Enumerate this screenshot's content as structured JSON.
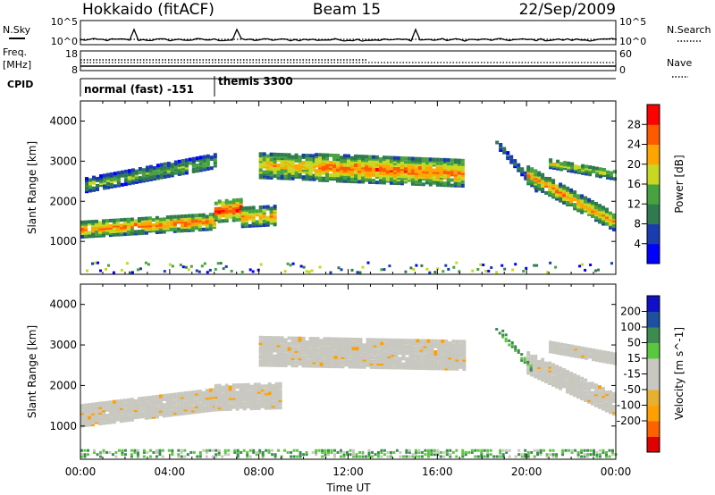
{
  "header": {
    "title_left": "Hokkaido (fitACF)",
    "title_center": "Beam 15",
    "title_right": "22/Sep/2009"
  },
  "status_panel": {
    "nsky_label": "N.Sky",
    "nsky_ticks": [
      "10^5",
      "10^0"
    ],
    "nsearch_label": "N.Search",
    "nsearch_ticks": [
      "10^5",
      "10^0"
    ],
    "freq_label": "Freq.",
    "freq_unit": "[MHz]",
    "freq_ticks": [
      "18",
      "8"
    ],
    "nave_label": "Nave",
    "nave_ticks": [
      "60",
      "0"
    ],
    "cpid_label": "CPID",
    "cpid_segments": [
      {
        "name": "normal (fast) -151",
        "start_hour": 0,
        "end_hour": 6.0
      },
      {
        "name": "themis 3300",
        "start_hour": 6.0,
        "end_hour": 24
      }
    ]
  },
  "colors": {
    "power_scale": [
      "#0000ff",
      "#1a3cae",
      "#2f7a4f",
      "#47a340",
      "#c8d820",
      "#ffa500",
      "#ff5a00",
      "#ff0000"
    ],
    "velocity_scale": [
      "#e00000",
      "#ff6000",
      "#ffa000",
      "#e8b030",
      "#c8c8c0",
      "#c8c8c0",
      "#5ac83c",
      "#3c8c50",
      "#1e50a0",
      "#1010c8"
    ],
    "ground_scatter": "#c8c8c0"
  },
  "chart_data": [
    {
      "type": "heatmap",
      "panel": "power",
      "xlabel": "",
      "ylabel": "Slant Range [km]",
      "x_unit": "hours UT",
      "xlim": [
        0,
        24
      ],
      "ylim": [
        180,
        4500
      ],
      "yticks": [
        "1000",
        "2000",
        "3000",
        "4000"
      ],
      "colorbar": {
        "label": "Power [dB]",
        "ticks": [
          "4",
          "8",
          "12",
          "16",
          "20",
          "24",
          "28"
        ],
        "range": [
          0,
          32
        ]
      },
      "echo_bands": [
        {
          "t0": 0.0,
          "t1": 6.0,
          "r_start": 1350,
          "r_end": 1550,
          "width": 380,
          "peak_db": 26
        },
        {
          "t0": 0.2,
          "t1": 6.0,
          "r_start": 2450,
          "r_end": 3050,
          "width": 320,
          "peak_db": 16
        },
        {
          "t0": 6.0,
          "t1": 7.2,
          "r_start": 1800,
          "r_end": 1850,
          "width": 520,
          "peak_db": 30
        },
        {
          "t0": 7.2,
          "t1": 8.8,
          "r_start": 1650,
          "r_end": 1700,
          "width": 460,
          "peak_db": 24
        },
        {
          "t0": 8.0,
          "t1": 10.5,
          "r_start": 2950,
          "r_end": 2900,
          "width": 620,
          "peak_db": 22
        },
        {
          "t0": 10.5,
          "t1": 17.2,
          "r_start": 2900,
          "r_end": 2750,
          "width": 650,
          "peak_db": 26
        },
        {
          "t0": 18.6,
          "t1": 20.5,
          "r_start": 3500,
          "r_end": 2300,
          "width": 160,
          "peak_db": 12
        },
        {
          "t0": 20.0,
          "t1": 24.0,
          "r_start": 2700,
          "r_end": 1500,
          "width": 420,
          "peak_db": 24
        },
        {
          "t0": 21.0,
          "t1": 24.0,
          "r_start": 3000,
          "r_end": 2700,
          "width": 220,
          "peak_db": 20
        }
      ]
    },
    {
      "type": "heatmap",
      "panel": "velocity",
      "xlabel": "Time UT",
      "ylabel": "Slant Range [km]",
      "x_unit": "hours UT",
      "xlim": [
        0,
        24
      ],
      "ylim": [
        180,
        4500
      ],
      "xticks": [
        "00:00",
        "04:00",
        "08:00",
        "12:00",
        "16:00",
        "20:00",
        "00:00"
      ],
      "yticks": [
        "1000",
        "2000",
        "3000",
        "4000"
      ],
      "colorbar": {
        "label": "Velocity [m s^-1]",
        "ticks": [
          "200",
          "100",
          "50",
          "15",
          "-15",
          "-50",
          "-100",
          "-200"
        ]
      },
      "ground_scatter_bands": [
        {
          "t0": 0.0,
          "t1": 6.0,
          "r_start": 1300,
          "r_end": 1700,
          "width": 500
        },
        {
          "t0": 6.0,
          "t1": 9.0,
          "r_start": 1750,
          "r_end": 1800,
          "width": 600
        },
        {
          "t0": 8.0,
          "t1": 17.2,
          "r_start": 2900,
          "r_end": 2800,
          "width": 700
        },
        {
          "t0": 20.0,
          "t1": 24.0,
          "r_start": 2600,
          "r_end": 1550,
          "width": 500
        },
        {
          "t0": 21.0,
          "t1": 24.0,
          "r_start": 3000,
          "r_end": 2700,
          "width": 240
        }
      ],
      "ionospheric_bands": [
        {
          "t0": 18.6,
          "t1": 20.2,
          "r_start": 3500,
          "r_end": 2400,
          "width": 160,
          "velocity": 60
        },
        {
          "t0": 0.0,
          "t1": 24.0,
          "r_start": 360,
          "r_end": 360,
          "width": 160,
          "velocity": 40
        }
      ]
    }
  ]
}
